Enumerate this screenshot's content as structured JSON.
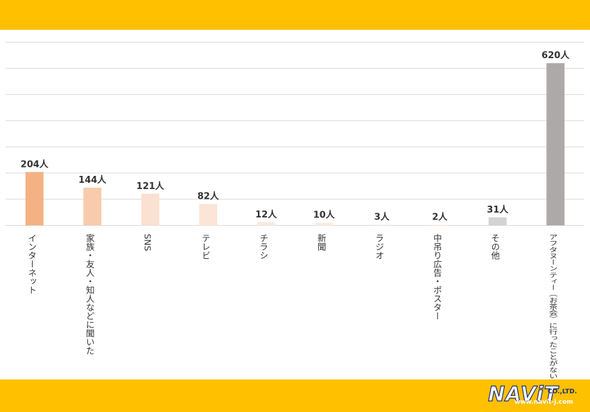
{
  "colors": {
    "band": "#FFC000",
    "grid": "#D9D9D9",
    "label_text": "#333333",
    "logo_navy": "#1A2F7A"
  },
  "logo": {
    "wordmark": "NAViT",
    "suffix": "CO.,LTD.",
    "url": "www.navit-j.com"
  },
  "chart_data": {
    "type": "bar",
    "title": "",
    "xlabel": "",
    "ylabel": "",
    "ylim": [
      0,
      700
    ],
    "grid": true,
    "legend": "none",
    "categories": [
      "インターネット",
      "家族・友人・知人などに聞いた",
      "SNS",
      "テレビ",
      "チラシ",
      "新聞",
      "ラジオ",
      "中吊り広告・ポスター",
      "その他",
      "アフタヌーンティー（お茶会）に行ったことがない"
    ],
    "values": [
      204,
      144,
      121,
      82,
      12,
      10,
      3,
      2,
      31,
      620
    ],
    "value_labels": [
      "204人",
      "144人",
      "121人",
      "82人",
      "12人",
      "10人",
      "3人",
      "2人",
      "31人",
      "620人"
    ],
    "bar_colors": [
      "#F4B183",
      "#F8CBAD",
      "#FBE1D2",
      "#FBE5D6",
      "#FCE9DC",
      "#FCEBE0",
      "#FDEEE4",
      "#FEF1E8",
      "#D3D3D3",
      "#ADA9A9"
    ]
  }
}
